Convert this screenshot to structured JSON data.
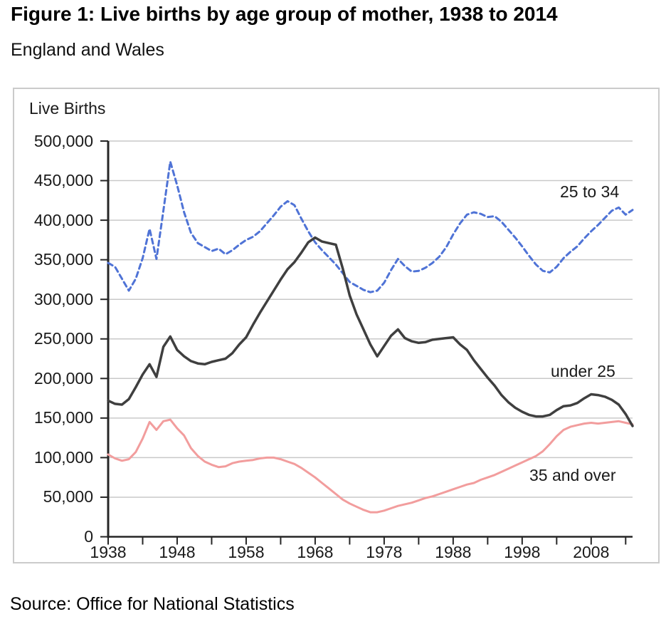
{
  "page": {
    "title": "Figure 1: Live births by age group of mother, 1938 to 2014",
    "subtitle": "England and Wales",
    "source": "Source: Office for National Statistics"
  },
  "chart_data": {
    "type": "line",
    "title": "Figure 1: Live births by age group of mother, 1938 to 2014",
    "region": "England and Wales",
    "y_axis_title": "Live Births",
    "grid": "horizontal",
    "legend_position": "inline-annotations-right",
    "x_range": [
      1938,
      2014
    ],
    "x_tick_step_years": 5,
    "x_label_years": [
      1938,
      1948,
      1958,
      1968,
      1978,
      1988,
      1998,
      2008
    ],
    "y_range": [
      0,
      500000
    ],
    "y_tick_step": 50000,
    "y_tick_labels": [
      "0",
      "50,000",
      "100,000",
      "150,000",
      "200,000",
      "250,000",
      "300,000",
      "350,000",
      "400,000",
      "450,000",
      "500,000"
    ],
    "years": [
      1938,
      1939,
      1940,
      1941,
      1942,
      1943,
      1944,
      1945,
      1946,
      1947,
      1948,
      1949,
      1950,
      1951,
      1952,
      1953,
      1954,
      1955,
      1956,
      1957,
      1958,
      1959,
      1960,
      1961,
      1962,
      1963,
      1964,
      1965,
      1966,
      1967,
      1968,
      1969,
      1970,
      1971,
      1972,
      1973,
      1974,
      1975,
      1976,
      1977,
      1978,
      1979,
      1980,
      1981,
      1982,
      1983,
      1984,
      1985,
      1986,
      1987,
      1988,
      1989,
      1990,
      1991,
      1992,
      1993,
      1994,
      1995,
      1996,
      1997,
      1998,
      1999,
      2000,
      2001,
      2002,
      2003,
      2004,
      2005,
      2006,
      2007,
      2008,
      2009,
      2010,
      2011,
      2012,
      2013,
      2014
    ],
    "series": [
      {
        "name": "25 to 34",
        "color": "#4F73D6",
        "style": "dashed",
        "values": [
          346000,
          341000,
          326000,
          311000,
          326000,
          352000,
          389000,
          351000,
          412000,
          474000,
          444000,
          410000,
          384000,
          371000,
          366000,
          361000,
          364000,
          357000,
          362000,
          369000,
          375000,
          379000,
          386000,
          396000,
          406000,
          417000,
          424000,
          419000,
          402000,
          386000,
          372000,
          362000,
          353000,
          344000,
          333000,
          322000,
          317000,
          312000,
          309000,
          311000,
          321000,
          337000,
          351000,
          342000,
          335000,
          336000,
          340000,
          346000,
          354000,
          366000,
          382000,
          396000,
          407000,
          410000,
          408000,
          404000,
          405000,
          398000,
          388000,
          378000,
          367000,
          355000,
          344000,
          336000,
          334000,
          341000,
          352000,
          360000,
          367000,
          377000,
          386000,
          394000,
          403000,
          412000,
          416000,
          407000,
          413000
        ]
      },
      {
        "name": "under 25",
        "color": "#3F3F3F",
        "style": "solid",
        "values": [
          172000,
          168000,
          167000,
          174000,
          189000,
          205000,
          218000,
          202000,
          240000,
          253000,
          236000,
          228000,
          222000,
          219000,
          218000,
          221000,
          223000,
          225000,
          232000,
          243000,
          252000,
          268000,
          283000,
          297000,
          311000,
          325000,
          338000,
          347000,
          359000,
          372000,
          378000,
          373000,
          371000,
          369000,
          339000,
          305000,
          281000,
          262000,
          243000,
          228000,
          241000,
          254000,
          262000,
          251000,
          247000,
          245000,
          246000,
          249000,
          250000,
          251000,
          252000,
          243000,
          236000,
          223000,
          212000,
          201000,
          191000,
          179000,
          170000,
          163000,
          158000,
          154000,
          152000,
          152000,
          154000,
          160000,
          165000,
          166000,
          169000,
          175000,
          180000,
          179000,
          177000,
          173000,
          167000,
          155000,
          140000
        ]
      },
      {
        "name": "35 and over",
        "color": "#F29D9D",
        "style": "solid",
        "values": [
          104000,
          99000,
          96000,
          98000,
          107000,
          124000,
          145000,
          135000,
          146000,
          148000,
          137000,
          128000,
          112000,
          102000,
          95000,
          91000,
          88000,
          89000,
          93000,
          95000,
          96000,
          97000,
          99000,
          100000,
          100000,
          98000,
          95000,
          92000,
          87000,
          81000,
          75000,
          68000,
          61000,
          54000,
          47000,
          42000,
          38000,
          34000,
          31000,
          31000,
          33000,
          36000,
          39000,
          41000,
          43000,
          46000,
          49000,
          51000,
          54000,
          57000,
          60000,
          63000,
          66000,
          68000,
          72000,
          75000,
          78000,
          82000,
          86000,
          90000,
          94000,
          98000,
          102000,
          108000,
          117000,
          127000,
          135000,
          139000,
          141000,
          143000,
          144000,
          143000,
          144000,
          145000,
          146000,
          144000,
          142000
        ]
      }
    ]
  }
}
